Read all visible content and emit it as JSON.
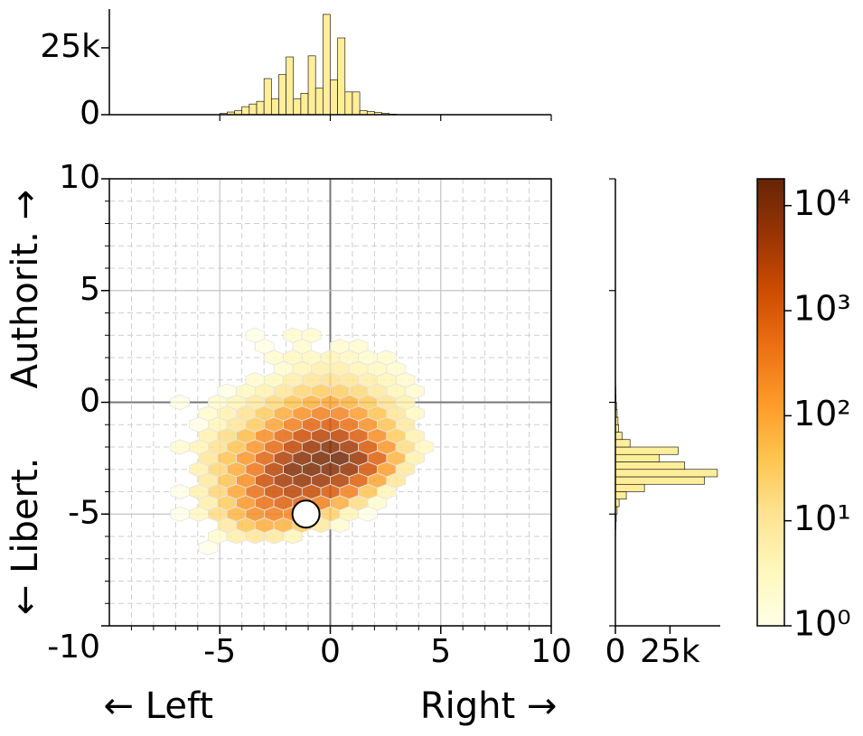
{
  "chart_data": [
    {
      "type": "hexbin",
      "xlim": [
        -10,
        10
      ],
      "ylim": [
        -10,
        10
      ],
      "xticks": [
        -5,
        0,
        5,
        10
      ],
      "yticks": [
        -10,
        -5,
        0,
        5,
        10
      ],
      "minor_ticks": [
        -9,
        -8,
        -7,
        -6,
        -4,
        -3,
        -2,
        -1,
        1,
        2,
        3,
        4,
        6,
        7,
        8,
        9
      ],
      "grid": true,
      "xlabel": "← Left                  Right →",
      "ylabel": "← Libert.      Authorit. →",
      "marker": {
        "x": -1.1,
        "y": -5.0
      },
      "rows": [
        {
          "y": 3.0,
          "x": [
            -3.4,
            -1.7,
            -0.85
          ],
          "values": [
            1,
            2,
            2
          ]
        },
        {
          "y": 2.5,
          "x": [
            -2.975,
            -1.275,
            0.425,
            1.275
          ],
          "values": [
            1,
            2,
            2,
            2
          ]
        },
        {
          "y": 2.0,
          "x": [
            -2.55,
            -1.7,
            -0.85,
            0,
            0.85,
            1.7,
            2.55
          ],
          "values": [
            2,
            3,
            3,
            4,
            3,
            2,
            2
          ]
        },
        {
          "y": 1.5,
          "x": [
            -2.125,
            -1.275,
            -0.425,
            0.425,
            1.275,
            2.125,
            2.975
          ],
          "values": [
            2,
            4,
            6,
            6,
            4,
            3,
            2
          ]
        },
        {
          "y": 1.0,
          "x": [
            -3.4,
            -2.55,
            -1.7,
            -0.85,
            0,
            0.85,
            1.7,
            2.55,
            3.4
          ],
          "values": [
            2,
            3,
            6,
            10,
            12,
            10,
            6,
            4,
            2
          ]
        },
        {
          "y": 0.5,
          "x": [
            -4.675,
            -3.825,
            -2.975,
            -2.125,
            -1.275,
            -0.425,
            0.425,
            1.275,
            2.125,
            2.975,
            3.825
          ],
          "values": [
            1,
            3,
            5,
            10,
            20,
            30,
            28,
            18,
            8,
            4,
            2
          ]
        },
        {
          "y": 0.0,
          "x": [
            -6.8,
            -5.1,
            -4.25,
            -3.4,
            -2.55,
            -1.7,
            -0.85,
            0,
            0.85,
            1.7,
            2.55,
            3.4
          ],
          "values": [
            1,
            2,
            4,
            8,
            18,
            40,
            70,
            90,
            60,
            30,
            12,
            5
          ]
        },
        {
          "y": -0.5,
          "x": [
            -5.525,
            -4.675,
            -3.825,
            -2.975,
            -2.125,
            -1.275,
            -0.425,
            0.425,
            1.275,
            2.125,
            2.975,
            3.825
          ],
          "values": [
            2,
            5,
            12,
            30,
            80,
            180,
            300,
            260,
            120,
            40,
            10,
            3
          ]
        },
        {
          "y": -1.0,
          "x": [
            -5.95,
            -5.1,
            -4.25,
            -3.4,
            -2.55,
            -1.7,
            -0.85,
            0,
            0.85,
            1.7,
            2.55,
            3.4
          ],
          "values": [
            1,
            4,
            10,
            30,
            100,
            300,
            700,
            900,
            500,
            180,
            40,
            8
          ]
        },
        {
          "y": -1.5,
          "x": [
            -5.525,
            -4.675,
            -3.825,
            -2.975,
            -2.125,
            -1.275,
            -0.425,
            0.425,
            1.275,
            2.125,
            2.975,
            3.825
          ],
          "values": [
            5,
            15,
            50,
            200,
            600,
            1500,
            2500,
            2200,
            900,
            200,
            30,
            5
          ]
        },
        {
          "y": -2.0,
          "x": [
            -6.8,
            -5.95,
            -5.1,
            -4.25,
            -3.4,
            -2.55,
            -1.7,
            -0.85,
            0,
            0.85,
            1.7,
            2.55,
            3.4,
            4.25
          ],
          "values": [
            2,
            4,
            12,
            40,
            150,
            600,
            2000,
            5000,
            8000,
            4000,
            1000,
            150,
            15,
            3
          ]
        },
        {
          "y": -2.5,
          "x": [
            -5.525,
            -4.675,
            -3.825,
            -2.975,
            -2.125,
            -1.275,
            -0.425,
            0.425,
            1.275,
            2.125,
            2.975,
            3.825
          ],
          "values": [
            10,
            40,
            150,
            700,
            3000,
            8000,
            12000,
            14000,
            5000,
            800,
            60,
            5
          ]
        },
        {
          "y": -3.0,
          "x": [
            -5.95,
            -5.1,
            -4.25,
            -3.4,
            -2.55,
            -1.7,
            -0.85,
            0,
            0.85,
            1.7,
            2.55,
            3.4
          ],
          "values": [
            5,
            20,
            80,
            400,
            2500,
            9000,
            11000,
            9000,
            6000,
            1200,
            120,
            8
          ]
        },
        {
          "y": -3.5,
          "x": [
            -5.525,
            -4.675,
            -3.825,
            -2.975,
            -2.125,
            -1.275,
            -0.425,
            0.425,
            1.275,
            2.125,
            2.975
          ],
          "values": [
            8,
            40,
            200,
            1500,
            4000,
            6000,
            5000,
            3000,
            800,
            100,
            10
          ]
        },
        {
          "y": -4.0,
          "x": [
            -6.8,
            -5.95,
            -5.1,
            -4.25,
            -3.4,
            -2.55,
            -1.7,
            -0.85,
            0,
            0.85,
            1.7,
            2.55
          ],
          "values": [
            1,
            5,
            20,
            100,
            500,
            1500,
            2500,
            1800,
            1000,
            300,
            40,
            4
          ]
        },
        {
          "y": -4.5,
          "x": [
            -5.525,
            -4.675,
            -3.825,
            -2.975,
            -2.125,
            -1.275,
            -0.425,
            0.425,
            1.275,
            2.125
          ],
          "values": [
            6,
            30,
            150,
            500,
            800,
            700,
            300,
            80,
            15,
            2
          ]
        },
        {
          "y": -5.0,
          "x": [
            -6.8,
            -5.95,
            -5.1,
            -4.25,
            -3.4,
            -2.55,
            -1.7,
            -0.85,
            0,
            0.85,
            1.7
          ],
          "values": [
            1,
            3,
            15,
            60,
            200,
            300,
            250,
            100,
            25,
            4,
            1
          ]
        },
        {
          "y": -5.5,
          "x": [
            -4.675,
            -3.825,
            -2.975,
            -2.125,
            -1.275,
            -0.425,
            0.425
          ],
          "values": [
            8,
            40,
            80,
            70,
            30,
            8,
            2
          ]
        },
        {
          "y": -6.0,
          "x": [
            -5.1,
            -4.25,
            -3.4,
            -2.55,
            -1.7
          ],
          "values": [
            2,
            6,
            10,
            8,
            4
          ]
        },
        {
          "y": -6.5,
          "x": [
            -5.525
          ],
          "values": [
            1
          ]
        }
      ]
    },
    {
      "type": "histogram",
      "orientation": "vertical",
      "color": "#ffee99",
      "xlim": [
        -10,
        10
      ],
      "xticks": [
        -5,
        0,
        5,
        10
      ],
      "ylim": [
        0,
        39500
      ],
      "yticks": [
        0,
        {
          "value": 25000,
          "label": "25k"
        }
      ],
      "bins": [
        -5,
        -4.667,
        -4.333,
        -4,
        -3.667,
        -3.333,
        -3,
        -2.667,
        -2.333,
        -2,
        -1.667,
        -1.333,
        -1,
        -0.667,
        -0.333,
        0,
        0.333,
        0.667,
        1,
        1.333,
        1.667,
        2,
        2.333,
        2.667,
        3
      ],
      "values": [
        500,
        1000,
        1500,
        3000,
        4000,
        5000,
        13500,
        6000,
        15000,
        21600,
        6000,
        8000,
        22000,
        10000,
        37500,
        13000,
        28700,
        8500,
        8500,
        1500,
        1200,
        800,
        500,
        200
      ]
    },
    {
      "type": "histogram",
      "orientation": "horizontal",
      "color": "#ffee99",
      "xlim": [
        0,
        48000
      ],
      "xticks": [
        0,
        {
          "value": 25000,
          "label": "25k"
        }
      ],
      "ylim": [
        -10,
        10
      ],
      "yticks": [
        -10,
        -5,
        0,
        5,
        10
      ],
      "bins": [
        -6,
        -5.667,
        -5.333,
        -5,
        -4.667,
        -4.333,
        -4,
        -3.667,
        -3.333,
        -3,
        -2.667,
        -2.333,
        -2,
        -1.667,
        -1.333,
        -1,
        -0.667,
        -0.333,
        0,
        0.333,
        0.667,
        1
      ],
      "values": [
        100,
        200,
        400,
        800,
        1700,
        5000,
        13300,
        40800,
        46700,
        31700,
        20000,
        28700,
        6700,
        3000,
        1500,
        1200,
        800,
        500,
        300,
        200,
        100
      ]
    },
    {
      "type": "colorbar",
      "log": true,
      "ylim": [
        1,
        18000
      ],
      "yticks": [
        {
          "value": 1,
          "label": "10⁰"
        },
        {
          "value": 10,
          "label": "10¹"
        },
        {
          "value": 100,
          "label": "10²"
        },
        {
          "value": 1000,
          "label": "10³"
        },
        {
          "value": 10000,
          "label": "10⁴"
        }
      ],
      "colormap": [
        "#ffffe5",
        "#fff7bc",
        "#fee391",
        "#fec44f",
        "#fe9929",
        "#ec7014",
        "#cc4c02",
        "#993404",
        "#662506"
      ]
    }
  ]
}
